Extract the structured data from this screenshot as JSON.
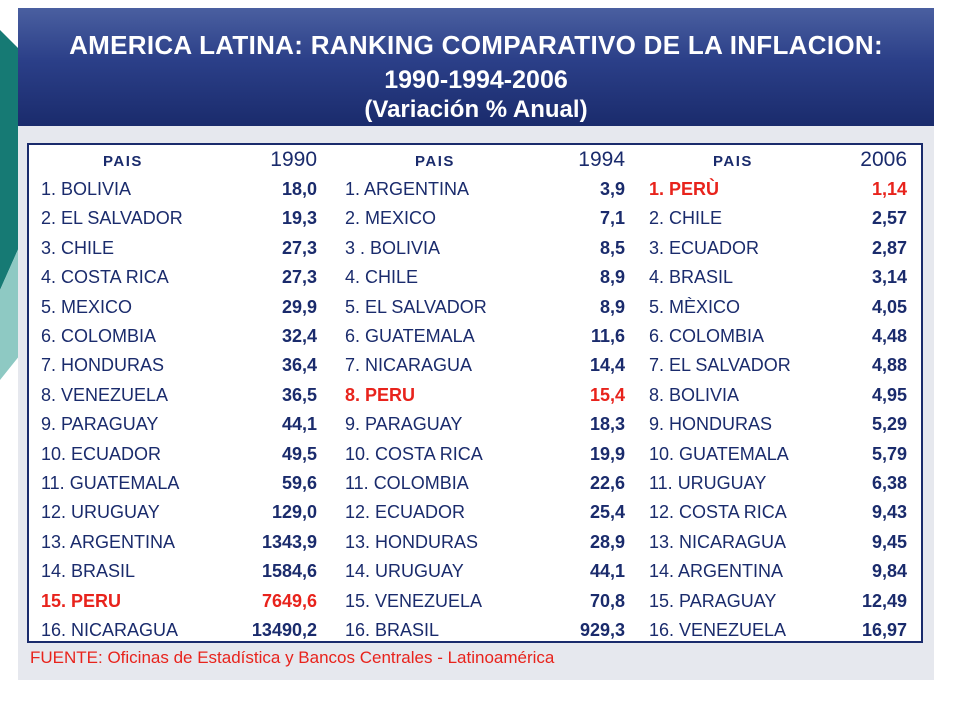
{
  "title": {
    "line1": "AMERICA LATINA: RANKING COMPARATIVO DE LA INFLACION:",
    "line2": "1990-1994-2006",
    "line3": "(Variación % Anual)"
  },
  "colors": {
    "header_bg": "#2b3f88",
    "text": "#1a2b6c",
    "highlight": "#e8231c",
    "deco_teal": "#167a74"
  },
  "columns": [
    {
      "header_label": "PAIS",
      "year": "1990",
      "rows": [
        {
          "name": "1. BOLIVIA",
          "value": "18,0",
          "highlight": false
        },
        {
          "name": "2. EL SALVADOR",
          "value": "19,3",
          "highlight": false
        },
        {
          "name": "3. CHILE",
          "value": "27,3",
          "highlight": false
        },
        {
          "name": "4. COSTA RICA",
          "value": "27,3",
          "highlight": false
        },
        {
          "name": "5. MEXICO",
          "value": "29,9",
          "highlight": false
        },
        {
          "name": "6. COLOMBIA",
          "value": "32,4",
          "highlight": false
        },
        {
          "name": "7. HONDURAS",
          "value": "36,4",
          "highlight": false
        },
        {
          "name": "8. VENEZUELA",
          "value": "36,5",
          "highlight": false
        },
        {
          "name": "9. PARAGUAY",
          "value": "44,1",
          "highlight": false
        },
        {
          "name": "10. ECUADOR",
          "value": "49,5",
          "highlight": false
        },
        {
          "name": "11. GUATEMALA",
          "value": "59,6",
          "highlight": false
        },
        {
          "name": "12. URUGUAY",
          "value": "129,0",
          "highlight": false
        },
        {
          "name": "13. ARGENTINA",
          "value": "1343,9",
          "highlight": false
        },
        {
          "name": "14. BRASIL",
          "value": "1584,6",
          "highlight": false
        },
        {
          "name": "15. PERU",
          "value": "7649,6",
          "highlight": true
        },
        {
          "name": "16. NICARAGUA",
          "value": "13490,2",
          "highlight": false
        }
      ]
    },
    {
      "header_label": "PAIS",
      "year": "1994",
      "rows": [
        {
          "name": "1. ARGENTINA",
          "value": "3,9",
          "highlight": false
        },
        {
          "name": "2. MEXICO",
          "value": "7,1",
          "highlight": false
        },
        {
          "name": "3 . BOLIVIA",
          "value": "8,5",
          "highlight": false
        },
        {
          "name": "4. CHILE",
          "value": "8,9",
          "highlight": false
        },
        {
          "name": "5. EL SALVADOR",
          "value": "8,9",
          "highlight": false
        },
        {
          "name": "6. GUATEMALA",
          "value": "11,6",
          "highlight": false
        },
        {
          "name": "7.  NICARAGUA",
          "value": "14,4",
          "highlight": false
        },
        {
          "name": "8. PERU",
          "value": "15,4",
          "highlight": true
        },
        {
          "name": "9. PARAGUAY",
          "value": "18,3",
          "highlight": false
        },
        {
          "name": "10. COSTA RICA",
          "value": "19,9",
          "highlight": false
        },
        {
          "name": "11. COLOMBIA",
          "value": "22,6",
          "highlight": false
        },
        {
          "name": "12. ECUADOR",
          "value": "25,4",
          "highlight": false
        },
        {
          "name": "13. HONDURAS",
          "value": "28,9",
          "highlight": false
        },
        {
          "name": "14. URUGUAY",
          "value": "44,1",
          "highlight": false
        },
        {
          "name": "15. VENEZUELA",
          "value": "70,8",
          "highlight": false
        },
        {
          "name": "16. BRASIL",
          "value": "929,3",
          "highlight": false
        }
      ]
    },
    {
      "header_label": "PAIS",
      "year": "2006",
      "rows": [
        {
          "name": "1. PERÙ",
          "value": "1,14",
          "highlight": true
        },
        {
          "name": "2. CHILE",
          "value": "2,57",
          "highlight": false
        },
        {
          "name": "3. ECUADOR",
          "value": "2,87",
          "highlight": false
        },
        {
          "name": "4. BRASIL",
          "value": "3,14",
          "highlight": false
        },
        {
          "name": "5. MÈXICO",
          "value": "4,05",
          "highlight": false
        },
        {
          "name": "6. COLOMBIA",
          "value": "4,48",
          "highlight": false
        },
        {
          "name": "7. EL SALVADOR",
          "value": "4,88",
          "highlight": false
        },
        {
          "name": "8. BOLIVIA",
          "value": "4,95",
          "highlight": false
        },
        {
          "name": "9. HONDURAS",
          "value": "5,29",
          "highlight": false
        },
        {
          "name": "10. GUATEMALA",
          "value": "5,79",
          "highlight": false
        },
        {
          "name": "11. URUGUAY",
          "value": "6,38",
          "highlight": false
        },
        {
          "name": "12. COSTA RICA",
          "value": "9,43",
          "highlight": false
        },
        {
          "name": "13. NICARAGUA",
          "value": "9,45",
          "highlight": false
        },
        {
          "name": "14. ARGENTINA",
          "value": "9,84",
          "highlight": false
        },
        {
          "name": "15. PARAGUAY",
          "value": "12,49",
          "highlight": false
        },
        {
          "name": "16. VENEZUELA",
          "value": "16,97",
          "highlight": false
        }
      ]
    }
  ],
  "source": "FUENTE: Oficinas de Estadística y Bancos Centrales  -  Latinoamérica"
}
